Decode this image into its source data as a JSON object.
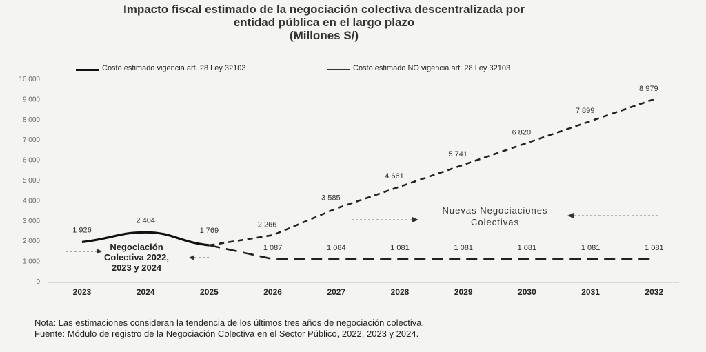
{
  "title_lines": [
    "Impacto fiscal estimado de la negociación colectiva descentralizada por",
    "entidad pública en el largo plazo",
    "(Millones S/)"
  ],
  "chart_data": {
    "type": "line",
    "x": [
      "2023",
      "2024",
      "2025",
      "2026",
      "2027",
      "2028",
      "2029",
      "2030",
      "2031",
      "2032"
    ],
    "ylim": [
      0,
      10000
    ],
    "yticks": [
      "0",
      "1 000",
      "2 000",
      "3 000",
      "4 000",
      "5 000",
      "6 000",
      "7 000",
      "8 000",
      "9 000",
      "10 000"
    ],
    "series": [
      {
        "name": "Costo estimado vigencia art. 28 Ley 32103",
        "values": [
          1926,
          2404,
          1769,
          1087,
          1084,
          1081,
          1081,
          1081,
          1081,
          1081
        ],
        "labels": [
          "1 926",
          "2 404",
          "1 769",
          "1 087",
          "1 084",
          "1 081",
          "1 081",
          "1 081",
          "1 081",
          "1 081"
        ]
      },
      {
        "name": "Costo estimado NO vigencia art. 28 Ley 32103",
        "values": [
          1926,
          2404,
          1769,
          2266,
          3585,
          4661,
          5741,
          6820,
          7899,
          8979
        ],
        "labels": [
          "",
          "",
          "",
          "2 266",
          "3 585",
          "4 661",
          "5 741",
          "6 820",
          "7 899",
          "8 979"
        ]
      }
    ],
    "annotations": [
      {
        "lines": [
          "Negociación",
          "Colectiva 2022,",
          "2023 y 2024"
        ]
      },
      {
        "lines": [
          "Nuevas Negociaciones",
          "Colectivas"
        ]
      }
    ],
    "grid": false,
    "legend_position": "top"
  },
  "notes": [
    "Nota: Las estimaciones consideran la tendencia de los últimos tres años de negociación colectiva.",
    "Fuente: Módulo de registro de la Negociación Colectiva en el Sector Público, 2022, 2023 y 2024."
  ]
}
